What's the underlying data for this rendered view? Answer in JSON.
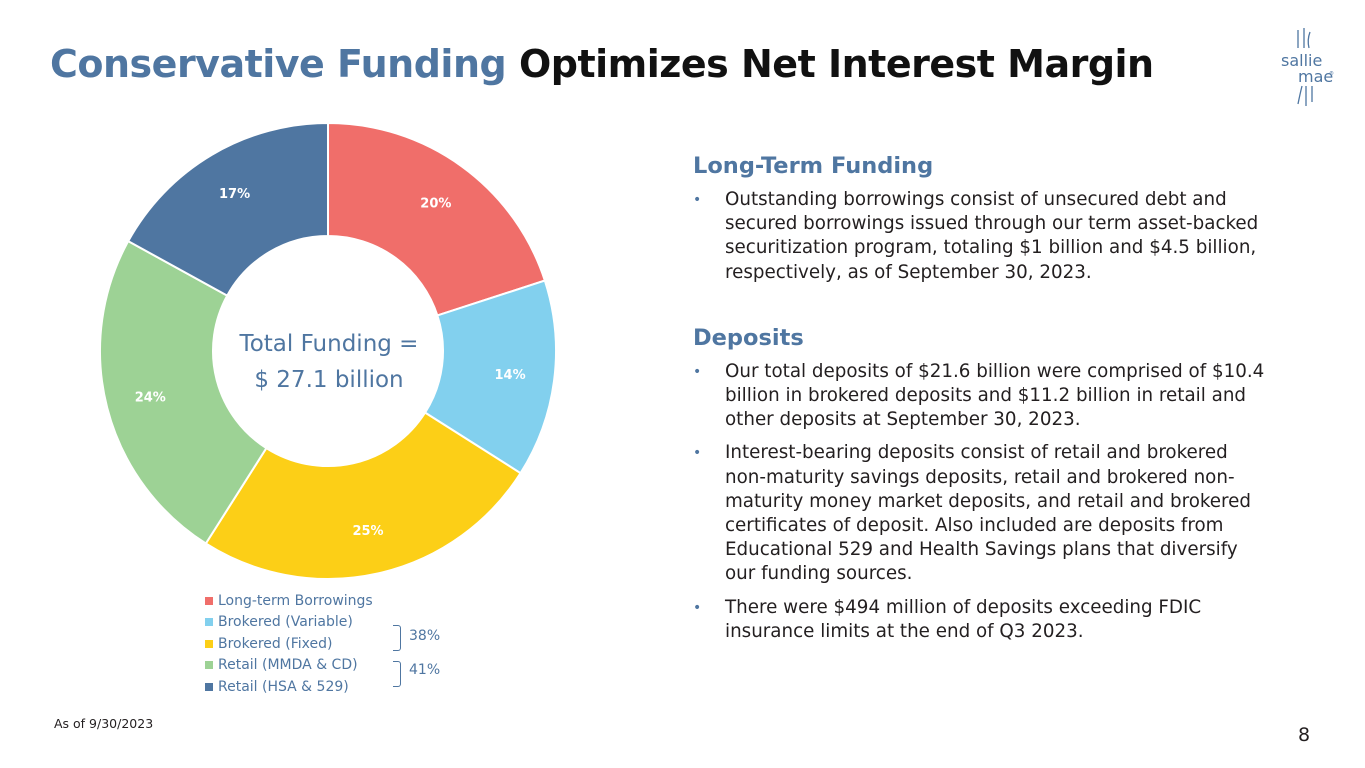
{
  "slide": {
    "title_accent": "Conservative Funding",
    "title_rest": "Optimizes Net Interest Margin",
    "footnote": "As of 9/30/2023",
    "page_number": "8"
  },
  "logo": {
    "line1": "sallie",
    "line2": "mae",
    "mark": "®",
    "color": "#4f76a1"
  },
  "chart_data": {
    "type": "pie",
    "donut": true,
    "title": "",
    "center_label_line1": "Total Funding =",
    "center_label_line2": "$ 27.1 billion",
    "categories": [
      "Long-term Borrowings",
      "Brokered (Variable)",
      "Brokered (Fixed)",
      "Retail (MMDA & CD)",
      "Retail (HSA & 529)"
    ],
    "values": [
      20,
      14,
      25,
      24,
      17
    ],
    "labels": [
      "20%",
      "14%",
      "25%",
      "24%",
      "17%"
    ],
    "colors": [
      "#f06e6a",
      "#82d0ee",
      "#fccf17",
      "#9dd295",
      "#4f76a1"
    ],
    "legend_position": "bottom",
    "groups": [
      {
        "label": "38%",
        "members": [
          "Brokered (Variable)",
          "Brokered (Fixed)"
        ]
      },
      {
        "label": "41%",
        "members": [
          "Retail (MMDA & CD)",
          "Retail (HSA & 529)"
        ]
      }
    ]
  },
  "content": {
    "long_term": {
      "heading": "Long-Term Funding",
      "bullets": [
        "Outstanding borrowings consist of unsecured debt and secured borrowings issued through our term asset-backed securitization program, totaling $1 billion and $4.5 billion, respectively, as of September 30, 2023."
      ]
    },
    "deposits": {
      "heading": "Deposits",
      "bullets": [
        "Our total deposits of $21.6 billion were comprised of $10.4 billion in brokered deposits and $11.2 billion in retail and other deposits at September 30, 2023.",
        "Interest-bearing deposits consist of retail and brokered non-maturity savings deposits, retail and brokered non-maturity money market deposits, and retail and brokered certificates of deposit. Also included are deposits from Educational 529 and Health Savings plans that diversify our funding sources.",
        "There were $494 million of deposits exceeding FDIC insurance limits at the end of Q3 2023."
      ]
    },
    "bullet_char": "•"
  }
}
